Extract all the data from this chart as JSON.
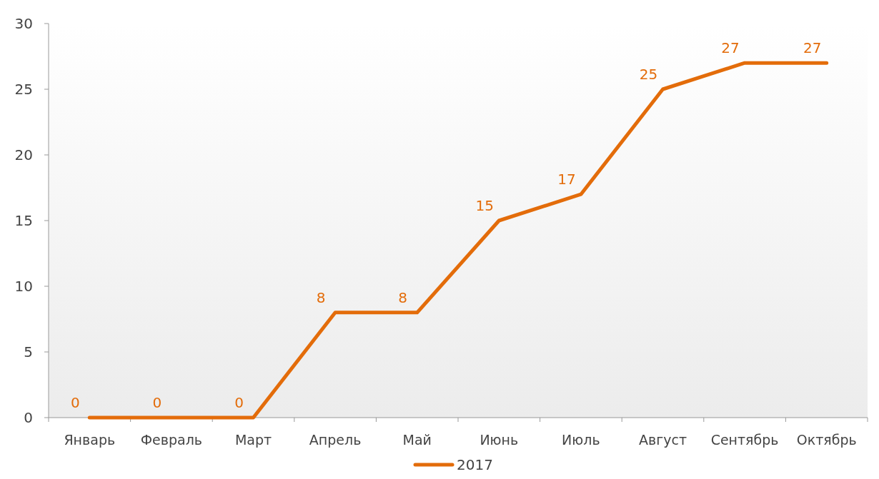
{
  "chart_data": {
    "type": "line",
    "categories": [
      "Январь",
      "Февраль",
      "Март",
      "Апрель",
      "Май",
      "Июнь",
      "Июль",
      "Август",
      "Сентябрь",
      "Октябрь"
    ],
    "series": [
      {
        "name": "2017",
        "color": "#e36c0a",
        "values": [
          0,
          0,
          0,
          8,
          8,
          15,
          17,
          25,
          27,
          27
        ]
      }
    ],
    "ylim": [
      0,
      30
    ],
    "yticks": [
      0,
      5,
      10,
      15,
      20,
      25,
      30
    ],
    "data_labels": true,
    "legend": "bottom",
    "grid": false,
    "marker": "none",
    "line_style": "solid"
  }
}
